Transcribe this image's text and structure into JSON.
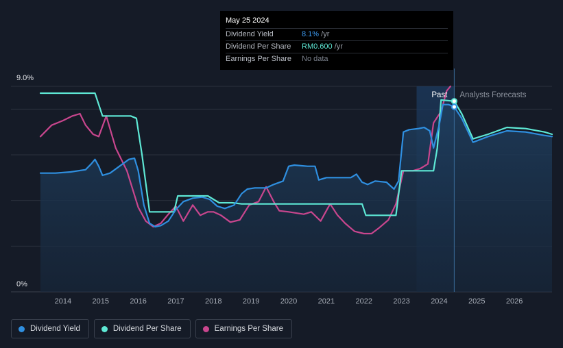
{
  "colors": {
    "background": "#151b27",
    "dividend_yield": "#2f8fe0",
    "dividend_per_share": "#5ee8d5",
    "earnings_per_share": "#c9468e",
    "grid": "#2a303c",
    "past_shade": "#1e3a5c"
  },
  "tooltip": {
    "date": "May 25 2024",
    "rows": [
      {
        "label": "Dividend Yield",
        "value": "8.1%",
        "unit": " /yr",
        "color": "#3d9af0"
      },
      {
        "label": "Dividend Per Share",
        "value": "RM0.600",
        "unit": " /yr",
        "color": "#5ee8d5"
      },
      {
        "label": "Earnings Per Share",
        "value": "No data",
        "unit": "",
        "color": "#7b818c"
      }
    ]
  },
  "legend": [
    {
      "label": "Dividend Yield",
      "color": "#2f8fe0"
    },
    {
      "label": "Dividend Per Share",
      "color": "#5ee8d5"
    },
    {
      "label": "Earnings Per Share",
      "color": "#c9468e"
    }
  ],
  "chart_data": {
    "type": "line",
    "y_axis": {
      "top_label": "9.0%",
      "bottom_label": "0%",
      "min": 0,
      "max": 9.0
    },
    "x_axis": {
      "min": 2013.2,
      "max": 2027.0,
      "ticks": [
        "2014",
        "2015",
        "2016",
        "2017",
        "2018",
        "2019",
        "2020",
        "2021",
        "2022",
        "2023",
        "2024",
        "2025",
        "2026"
      ]
    },
    "regions": {
      "past_label": "Past",
      "forecast_label": "Analysts Forecasts",
      "past_start": 2023.4,
      "divider": 2024.4
    },
    "series": [
      {
        "name": "Dividend Yield",
        "key": "dividend_yield",
        "area": true,
        "points": [
          [
            2013.4,
            5.2
          ],
          [
            2013.8,
            5.2
          ],
          [
            2014.2,
            5.25
          ],
          [
            2014.6,
            5.35
          ],
          [
            2014.75,
            5.6
          ],
          [
            2014.85,
            5.8
          ],
          [
            2014.95,
            5.5
          ],
          [
            2015.05,
            5.1
          ],
          [
            2015.25,
            5.2
          ],
          [
            2015.5,
            5.5
          ],
          [
            2015.75,
            5.8
          ],
          [
            2015.9,
            5.85
          ],
          [
            2016.0,
            5.3
          ],
          [
            2016.15,
            3.8
          ],
          [
            2016.3,
            3.0
          ],
          [
            2016.45,
            2.85
          ],
          [
            2016.6,
            2.9
          ],
          [
            2016.8,
            3.1
          ],
          [
            2017.0,
            3.6
          ],
          [
            2017.2,
            3.95
          ],
          [
            2017.45,
            4.1
          ],
          [
            2017.7,
            4.15
          ],
          [
            2017.9,
            4.05
          ],
          [
            2018.1,
            3.75
          ],
          [
            2018.3,
            3.65
          ],
          [
            2018.55,
            3.8
          ],
          [
            2018.75,
            4.3
          ],
          [
            2018.9,
            4.5
          ],
          [
            2019.1,
            4.55
          ],
          [
            2019.4,
            4.55
          ],
          [
            2019.6,
            4.7
          ],
          [
            2019.85,
            4.85
          ],
          [
            2020.0,
            5.5
          ],
          [
            2020.15,
            5.55
          ],
          [
            2020.5,
            5.5
          ],
          [
            2020.7,
            5.5
          ],
          [
            2020.8,
            4.9
          ],
          [
            2021.0,
            5.0
          ],
          [
            2021.2,
            5.0
          ],
          [
            2021.5,
            5.0
          ],
          [
            2021.65,
            5.0
          ],
          [
            2021.8,
            5.15
          ],
          [
            2021.95,
            4.8
          ],
          [
            2022.1,
            4.7
          ],
          [
            2022.3,
            4.85
          ],
          [
            2022.6,
            4.8
          ],
          [
            2022.8,
            4.5
          ],
          [
            2022.92,
            4.85
          ],
          [
            2023.05,
            7.0
          ],
          [
            2023.2,
            7.1
          ],
          [
            2023.45,
            7.15
          ],
          [
            2023.6,
            7.2
          ],
          [
            2023.75,
            7.05
          ],
          [
            2023.85,
            6.3
          ],
          [
            2024.0,
            7.3
          ],
          [
            2024.1,
            8.2
          ],
          [
            2024.25,
            8.2
          ],
          [
            2024.4,
            8.1
          ],
          [
            2024.6,
            7.6
          ],
          [
            2024.9,
            6.55
          ],
          [
            2025.3,
            6.8
          ],
          [
            2025.8,
            7.05
          ],
          [
            2026.3,
            7.0
          ],
          [
            2026.8,
            6.85
          ],
          [
            2027.0,
            6.8
          ]
        ]
      },
      {
        "name": "Dividend Per Share",
        "key": "dividend_per_share",
        "area": false,
        "points": [
          [
            2013.4,
            8.7
          ],
          [
            2014.85,
            8.7
          ],
          [
            2015.05,
            7.7
          ],
          [
            2015.8,
            7.7
          ],
          [
            2015.95,
            7.6
          ],
          [
            2016.1,
            6.0
          ],
          [
            2016.3,
            3.5
          ],
          [
            2016.6,
            3.5
          ],
          [
            2016.95,
            3.5
          ],
          [
            2017.05,
            4.2
          ],
          [
            2017.85,
            4.2
          ],
          [
            2018.15,
            3.9
          ],
          [
            2018.5,
            3.9
          ],
          [
            2018.75,
            3.85
          ],
          [
            2019.6,
            3.85
          ],
          [
            2021.5,
            3.85
          ],
          [
            2021.95,
            3.85
          ],
          [
            2022.05,
            3.35
          ],
          [
            2022.85,
            3.35
          ],
          [
            2023.0,
            5.3
          ],
          [
            2023.85,
            5.3
          ],
          [
            2023.95,
            6.3
          ],
          [
            2024.05,
            8.4
          ],
          [
            2024.4,
            8.35
          ],
          [
            2024.6,
            7.8
          ],
          [
            2024.9,
            6.7
          ],
          [
            2025.3,
            6.9
          ],
          [
            2025.8,
            7.2
          ],
          [
            2026.3,
            7.15
          ],
          [
            2026.8,
            7.0
          ],
          [
            2027.0,
            6.9
          ]
        ]
      },
      {
        "name": "Earnings Per Share",
        "key": "earnings_per_share",
        "area": false,
        "points": [
          [
            2013.4,
            6.8
          ],
          [
            2013.7,
            7.3
          ],
          [
            2014.0,
            7.5
          ],
          [
            2014.25,
            7.7
          ],
          [
            2014.45,
            7.8
          ],
          [
            2014.6,
            7.3
          ],
          [
            2014.8,
            6.9
          ],
          [
            2014.95,
            6.8
          ],
          [
            2015.15,
            7.7
          ],
          [
            2015.4,
            6.3
          ],
          [
            2015.7,
            5.3
          ],
          [
            2016.0,
            3.7
          ],
          [
            2016.2,
            3.1
          ],
          [
            2016.4,
            2.85
          ],
          [
            2016.6,
            3.0
          ],
          [
            2016.8,
            3.4
          ],
          [
            2017.0,
            3.75
          ],
          [
            2017.2,
            3.1
          ],
          [
            2017.45,
            3.8
          ],
          [
            2017.65,
            3.35
          ],
          [
            2017.85,
            3.5
          ],
          [
            2018.0,
            3.5
          ],
          [
            2018.2,
            3.35
          ],
          [
            2018.45,
            3.05
          ],
          [
            2018.7,
            3.15
          ],
          [
            2018.95,
            3.8
          ],
          [
            2019.2,
            3.95
          ],
          [
            2019.4,
            4.6
          ],
          [
            2019.6,
            3.95
          ],
          [
            2019.75,
            3.55
          ],
          [
            2020.0,
            3.5
          ],
          [
            2020.4,
            3.4
          ],
          [
            2020.6,
            3.5
          ],
          [
            2020.85,
            3.1
          ],
          [
            2021.1,
            3.85
          ],
          [
            2021.3,
            3.35
          ],
          [
            2021.5,
            3.0
          ],
          [
            2021.75,
            2.65
          ],
          [
            2022.0,
            2.55
          ],
          [
            2022.2,
            2.55
          ],
          [
            2022.4,
            2.8
          ],
          [
            2022.65,
            3.15
          ],
          [
            2022.85,
            3.85
          ],
          [
            2023.05,
            5.3
          ],
          [
            2023.3,
            5.3
          ],
          [
            2023.5,
            5.4
          ],
          [
            2023.7,
            5.6
          ],
          [
            2023.85,
            7.4
          ],
          [
            2024.05,
            7.9
          ],
          [
            2024.2,
            8.8
          ],
          [
            2024.3,
            9.0
          ]
        ]
      }
    ],
    "markers": [
      {
        "key": "dividend_per_share",
        "x": 2024.4,
        "y": 8.35
      },
      {
        "key": "dividend_yield",
        "x": 2024.4,
        "y": 8.1
      }
    ]
  }
}
